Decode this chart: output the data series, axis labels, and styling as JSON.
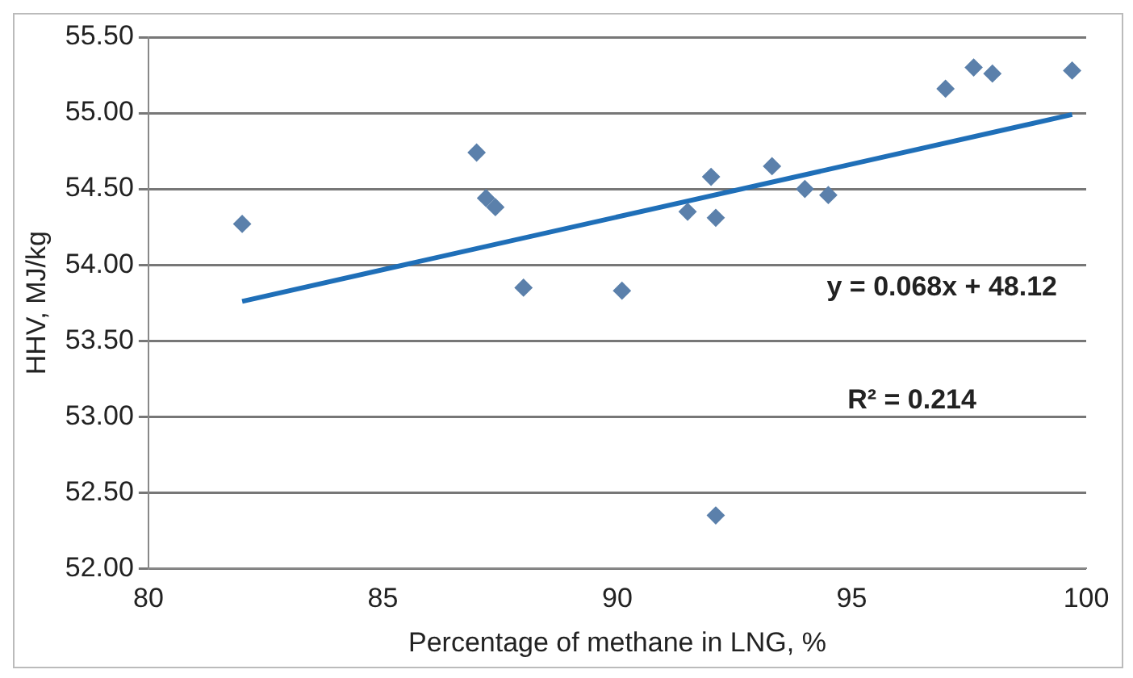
{
  "chart_data": {
    "type": "scatter",
    "xlabel": "Percentage of methane in LNG, %",
    "ylabel": "HHV, MJ/kg",
    "series": [
      {
        "color": "#5b80ab",
        "x": [
          82.0,
          87.0,
          87.2,
          87.4,
          88.0,
          90.1,
          91.5,
          92.0,
          92.1,
          92.1,
          93.3,
          94.0,
          94.5,
          97.0,
          97.6,
          98.0,
          99.7
        ],
        "values": [
          54.27,
          54.74,
          54.44,
          54.38,
          53.85,
          53.83,
          54.35,
          54.58,
          54.31,
          52.35,
          54.65,
          54.5,
          54.46,
          55.16,
          55.3,
          55.26,
          55.28
        ]
      },
      {
        "type": "line",
        "marker": "none",
        "color": "#1f6fb8",
        "x": [
          82.0,
          99.7
        ],
        "values": [
          53.76,
          54.99
        ]
      }
    ],
    "xlim": [
      80,
      100
    ],
    "xticks": [
      80,
      85,
      90,
      95,
      100
    ],
    "ylim": [
      52,
      55.5
    ],
    "yticks": [
      {
        "value": 52,
        "label": "52.00"
      },
      {
        "value": 52.5,
        "label": "52.50"
      },
      {
        "value": 53,
        "label": "53.00"
      },
      {
        "value": 53.5,
        "label": "53.50"
      },
      {
        "value": 54,
        "label": "54.00"
      },
      {
        "value": 54.5,
        "label": "54.50"
      },
      {
        "value": 55,
        "label": "55.00"
      },
      {
        "value": 55.5,
        "label": "55.50"
      }
    ],
    "grid": "y",
    "legend": false,
    "marker": "diamond",
    "annotations": [
      "y = 0.068x + 48.12",
      "R² = 0.214"
    ]
  }
}
